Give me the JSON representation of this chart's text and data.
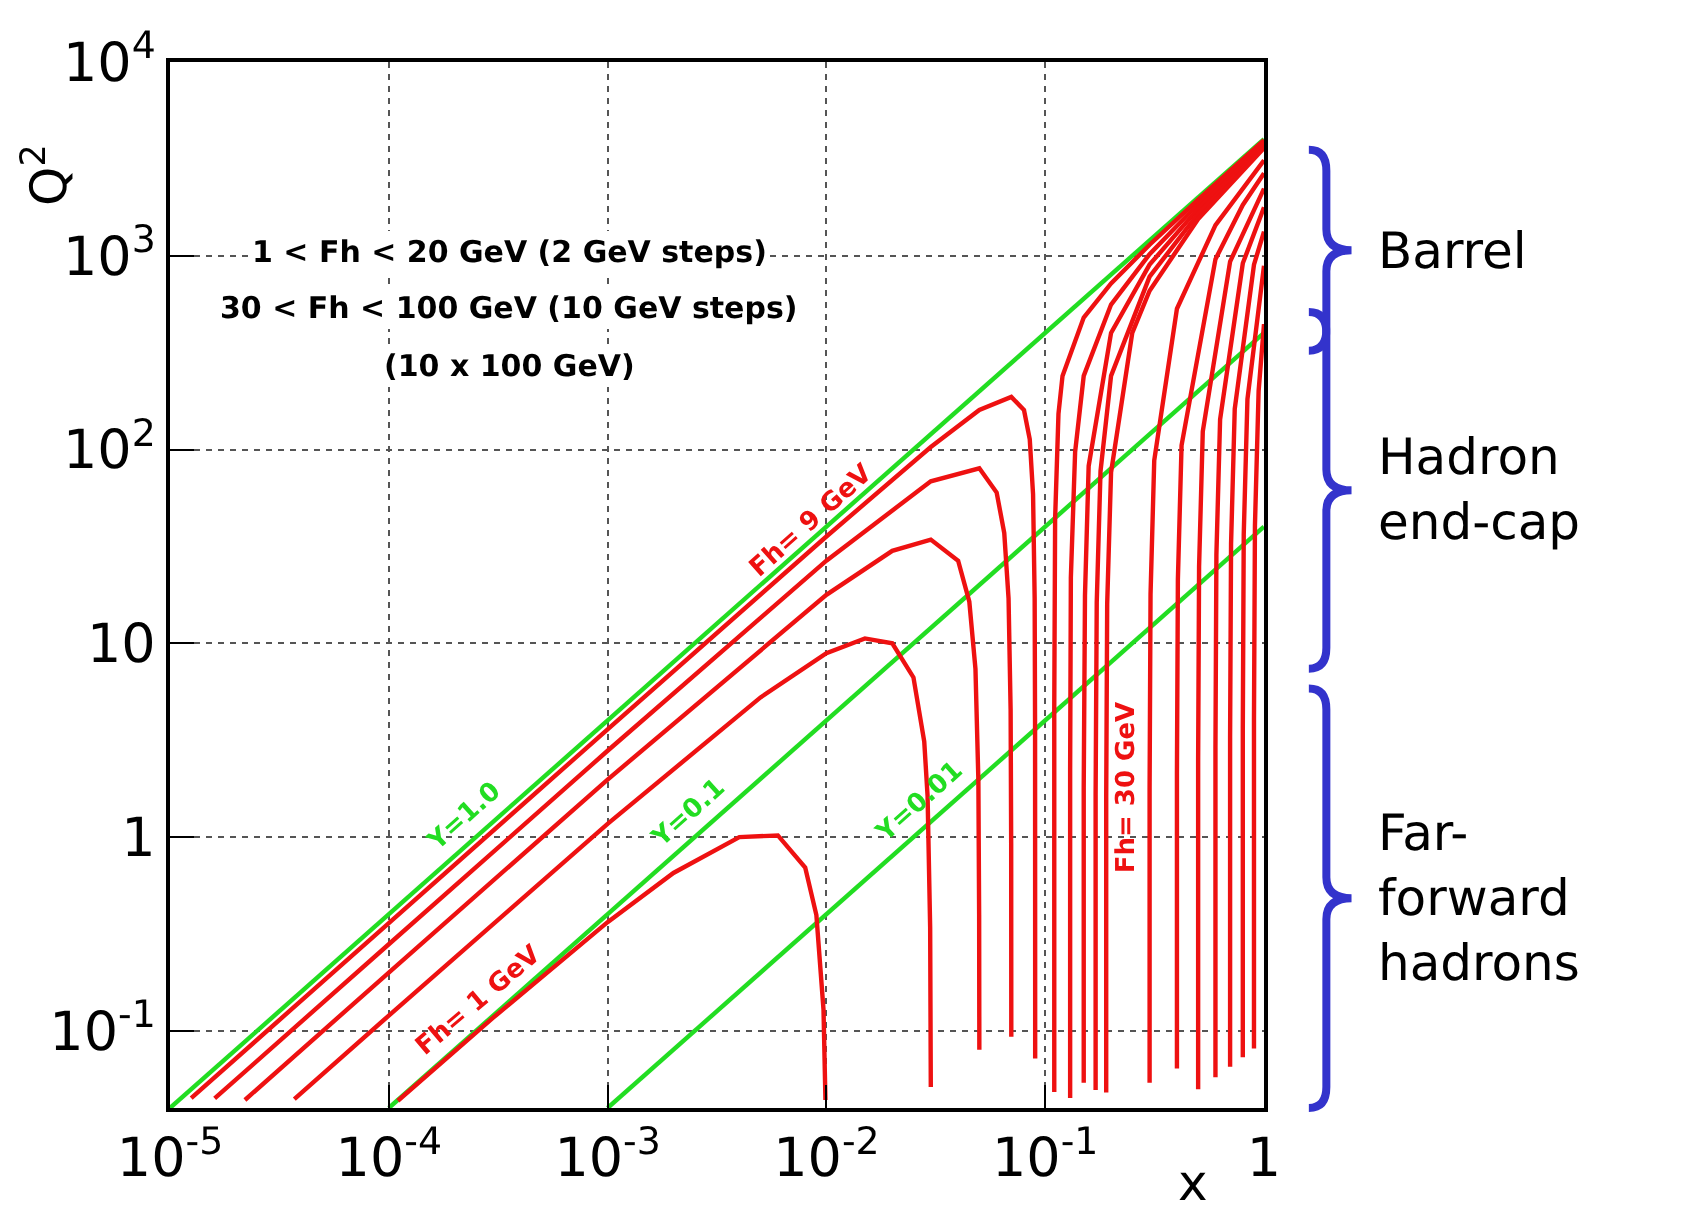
{
  "chart_data": {
    "type": "line",
    "xlabel": "x",
    "ylabel": "Q$^{2}$",
    "log": "xy",
    "grid": true,
    "marker": "none",
    "line_style": "solid",
    "xlim": [
      1e-05,
      1
    ],
    "ylim": [
      0.04,
      10000
    ],
    "xticks": [
      {
        "value": 1e-05,
        "label": "10$^{-5}$"
      },
      {
        "value": 0.0001,
        "label": "10$^{-4}$"
      },
      {
        "value": 0.001,
        "label": "10$^{-3}$"
      },
      {
        "value": 0.01,
        "label": "10$^{-2}$"
      },
      {
        "value": 0.1,
        "label": "10$^{-1}$"
      },
      1
    ],
    "yticks": [
      {
        "value": 0.1,
        "label": "10$^{-1}$"
      },
      1,
      10,
      {
        "value": 100,
        "label": "10$^{2}$"
      },
      {
        "value": 1000,
        "label": "10$^{3}$"
      },
      {
        "value": 10000,
        "label": "10$^{4}$"
      }
    ],
    "series": [
      {
        "color": "#22dd22",
        "x": [
          1e-05,
          1
        ],
        "values": [
          0.04,
          4000
        ]
      },
      {
        "color": "#22dd22",
        "x": [
          0.0001,
          1
        ],
        "values": [
          0.04,
          400
        ]
      },
      {
        "color": "#22dd22",
        "x": [
          0.001,
          1
        ],
        "values": [
          0.04,
          40
        ]
      },
      {
        "color": "#ee1111",
        "x": [
          0.00011,
          0.0003,
          0.001,
          0.002,
          0.004,
          0.006,
          0.008,
          0.009,
          0.0097,
          0.0099
        ],
        "values": [
          0.0436,
          0.117,
          0.364,
          0.653,
          1.0,
          1.02,
          0.696,
          0.396,
          0.129,
          0.044
        ]
      },
      {
        "color": "#ee1111",
        "x": [
          3.7e-05,
          0.0001,
          0.001,
          0.005,
          0.01,
          0.015,
          0.02,
          0.025,
          0.028,
          0.029,
          0.0298,
          0.03
        ],
        "values": [
          0.0444,
          0.12,
          1.17,
          5.26,
          8.89,
          10.6,
          10.0,
          6.67,
          3.11,
          1.63,
          0.34,
          0.0514
        ]
      },
      {
        "color": "#ee1111",
        "x": [
          2.2e-05,
          0.0001,
          0.001,
          0.01,
          0.02,
          0.03,
          0.04,
          0.045,
          0.048,
          0.0495,
          0.0499,
          0.05
        ],
        "values": [
          0.044,
          0.2,
          1.98,
          17.8,
          30,
          34.3,
          26.7,
          16.4,
          7.38,
          1.96,
          0.398,
          0.08
        ]
      },
      {
        "color": "#ee1111",
        "x": [
          1.6e-05,
          0.0001,
          0.001,
          0.01,
          0.03,
          0.05,
          0.06,
          0.065,
          0.068,
          0.0695,
          0.0699,
          0.07
        ],
        "values": [
          0.0448,
          0.28,
          2.79,
          26.7,
          68.6,
          80,
          60,
          37.1,
          17.0,
          4.56,
          0.929,
          0.0933
        ]
      },
      {
        "color": "#ee1111",
        "x": [
          1.25e-05,
          0.0001,
          0.001,
          0.01,
          0.03,
          0.05,
          0.07,
          0.08,
          0.085,
          0.088,
          0.0895,
          0.0899,
          0.09
        ],
        "values": [
          0.045,
          0.36,
          3.6,
          35.6,
          103,
          160,
          187,
          160,
          113,
          58.7,
          17.0,
          3.56,
          0.072
        ]
      },
      {
        "color": "#ee1111",
        "x": [
          0.11,
          0.11,
          0.11,
          0.111,
          0.115,
          0.12,
          0.15,
          0.2,
          0.3,
          0.5,
          1
        ],
        "values": [
          0.0484,
          0.484,
          4.79,
          44,
          153,
          240,
          480,
          720,
          1140,
          1950,
          3956
        ]
      },
      {
        "color": "#ee1111",
        "x": [
          0.13,
          0.13,
          0.13,
          0.131,
          0.137,
          0.15,
          0.2,
          0.3,
          0.5,
          1
        ],
        "values": [
          0.0451,
          0.225,
          2.24,
          21.8,
          97.2,
          240,
          560,
          1020,
          1850,
          3867
        ]
      },
      {
        "color": "#ee1111",
        "x": [
          0.15,
          0.15,
          0.15,
          0.152,
          0.158,
          0.2,
          0.3,
          0.5,
          1
        ],
        "values": [
          0.054,
          0.18,
          1.8,
          17.6,
          82.2,
          400,
          900,
          1750,
          3778
        ]
      },
      {
        "color": "#ee1111",
        "x": [
          0.17,
          0.17,
          0.17,
          0.172,
          0.179,
          0.2,
          0.3,
          0.5,
          1
        ],
        "values": [
          0.0496,
          0.165,
          1.65,
          16.3,
          77.3,
          240,
          780,
          1650,
          3689
        ]
      },
      {
        "color": "#ee1111",
        "x": [
          0.19,
          0.19,
          0.19,
          0.192,
          0.2,
          0.25,
          0.3,
          0.5,
          1
        ],
        "values": [
          0.0481,
          0.16,
          1.6,
          15.9,
          76.2,
          400,
          660,
          1550,
          3600
        ]
      },
      {
        "color": "#ee1111",
        "x": [
          0.3,
          0.3,
          0.3,
          0.303,
          0.315,
          0.4,
          0.6,
          1
        ],
        "values": [
          0.054,
          0.18,
          1.8,
          17.9,
          87.9,
          533,
          1440,
          3111
        ]
      },
      {
        "color": "#ee1111",
        "x": [
          0.4,
          0.4,
          0.4,
          0.404,
          0.42,
          0.6,
          0.8,
          1
        ],
        "values": [
          0.064,
          0.213,
          2.13,
          21.3,
          105,
          960,
          1829,
          2667
        ]
      },
      {
        "color": "#ee1111",
        "x": [
          0.5,
          0.5,
          0.5,
          0.505,
          0.525,
          0.7,
          1
        ],
        "values": [
          0.05,
          0.25,
          2.5,
          24.9,
          124,
          933,
          2222
        ]
      },
      {
        "color": "#ee1111",
        "x": [
          0.6,
          0.6,
          0.6,
          0.606,
          0.63,
          0.8,
          1
        ],
        "values": [
          0.0576,
          0.288,
          2.88,
          28.7,
          143,
          914,
          1778
        ]
      },
      {
        "color": "#ee1111",
        "x": [
          0.7,
          0.7,
          0.7,
          0.707,
          0.735,
          0.9,
          1
        ],
        "values": [
          0.0653,
          0.327,
          3.27,
          32.6,
          162,
          900,
          1333
        ]
      },
      {
        "color": "#ee1111",
        "x": [
          0.8,
          0.8,
          0.8,
          0.808,
          0.84,
          1
        ],
        "values": [
          0.0732,
          0.366,
          3.65,
          36.5,
          182,
          889
        ]
      },
      {
        "color": "#ee1111",
        "x": [
          0.9,
          0.9,
          0.9,
          0.909,
          0.945,
          1
        ],
        "values": [
          0.081,
          0.405,
          4.05,
          40.4,
          201,
          444
        ]
      }
    ],
    "annotations": [
      "1 < Fh < 20 GeV (2 GeV steps)",
      "30 < Fh < 100 GeV (10 GeV steps)",
      "(10 x 100 GeV)",
      {
        "text": "Fh= 9 GeV",
        "x": 0.01,
        "y": 35.6
      },
      {
        "text": "Fh= 1 GeV",
        "x": 0.0003,
        "y": 0.117
      },
      {
        "text": "Fh= 30 GeV",
        "x": 0.3,
        "y": 1.8
      },
      {
        "text": "Y=1.0",
        "x": 0.00026,
        "y": 1.04
      },
      {
        "text": "Y=0.1",
        "x": 0.0027,
        "y": 1.08
      },
      {
        "text": "Y=0.01",
        "x": 0.031,
        "y": 1.24
      },
      "Barrel",
      "Hadron end-cap",
      "Far-forward hadrons"
    ]
  }
}
